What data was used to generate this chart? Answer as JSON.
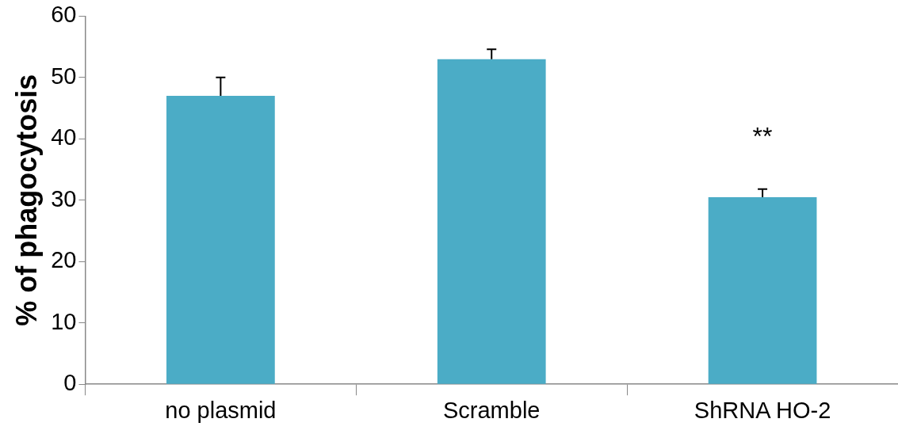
{
  "chart_data": {
    "type": "bar",
    "ylabel": "% of phagocytosis",
    "categories": [
      "no plasmid",
      "Scramble",
      "ShRNA HO-2"
    ],
    "values": [
      47,
      53,
      30.5
    ],
    "color": "#4bacc6",
    "errors": [
      [
        47,
        50
      ],
      [
        53,
        54.6
      ],
      [
        30.5,
        31.8
      ]
    ],
    "ylim": [
      0,
      60
    ],
    "yticks": [
      0,
      10,
      20,
      30,
      40,
      50,
      60
    ],
    "grid": false,
    "legend": false,
    "annotations": [
      "**"
    ]
  }
}
